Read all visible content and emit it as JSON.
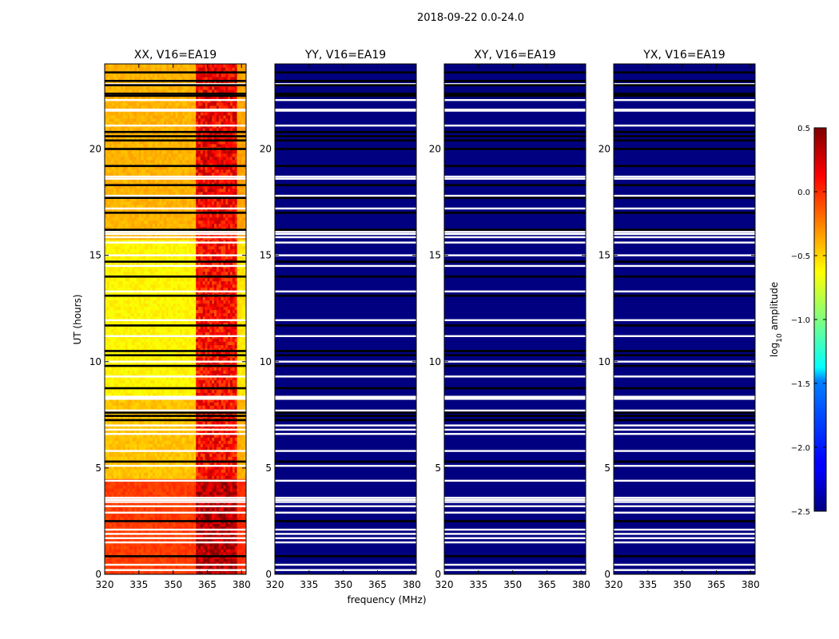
{
  "chart_data": {
    "type": "heatmap",
    "suptitle": "2018-09-22 0.0-24.0",
    "xlabel": "frequency (MHz)",
    "ylabel": "UT (hours)",
    "xlim": [
      320,
      382
    ],
    "ylim": [
      0,
      24
    ],
    "xticks": [
      320,
      335,
      350,
      365,
      380
    ],
    "yticks": [
      0,
      5,
      10,
      15,
      20
    ],
    "colorbar": {
      "label": "log10 amplitude",
      "label_base": "log",
      "label_sub": "10",
      "label_rest": " amplitude",
      "range": [
        -2.5,
        0.5
      ],
      "ticks": [
        0.5,
        0.0,
        -0.5,
        -1.0,
        -1.5,
        -2.0,
        -2.5
      ],
      "tick_labels": [
        "0.5",
        "0.0",
        "−0.5",
        "−1.0",
        "−1.5",
        "−2.0",
        "−2.5"
      ]
    },
    "panels": [
      {
        "title": "XX, V16=EA19",
        "fill_value": -0.4,
        "shape": "xx"
      },
      {
        "title": "YY, V16=EA19",
        "fill_value": -2.5,
        "shape": "uniform"
      },
      {
        "title": "XY, V16=EA19",
        "fill_value": -2.5,
        "shape": "uniform"
      },
      {
        "title": "YX, V16=EA19",
        "fill_value": -2.5,
        "shape": "uniform"
      }
    ],
    "xx_levels": [
      {
        "t_start": 0,
        "t_end": 4.5,
        "low_band": -0.05,
        "high_band": 0.25
      },
      {
        "t_start": 4.5,
        "t_end": 8.2,
        "low_band": -0.45,
        "high_band": 0.0
      },
      {
        "t_start": 8.2,
        "t_end": 15.8,
        "low_band": -0.6,
        "high_band": 0.0
      },
      {
        "t_start": 15.8,
        "t_end": 24,
        "low_band": -0.4,
        "high_band": 0.05
      }
    ],
    "flagged_black_hours": [
      0.85,
      2.5,
      5.3,
      7.25,
      7.45,
      7.6,
      8.75,
      9.8,
      10.3,
      10.5,
      11.7,
      13.1,
      14.0,
      14.7,
      16.2,
      17.0,
      17.7,
      18.3,
      19.2,
      20.0,
      20.4,
      20.6,
      20.8,
      22.5,
      22.6,
      23.0,
      23.2,
      23.6
    ],
    "flagged_white_hours": [
      0.2,
      0.45,
      1.5,
      1.7,
      1.9,
      2.1,
      2.9,
      3.2,
      3.4,
      3.5,
      3.6,
      4.4,
      5.1,
      5.8,
      6.6,
      6.8,
      7.0,
      7.7,
      8.25,
      8.3,
      8.35,
      9.3,
      10.0,
      11.2,
      11.95,
      13.3,
      14.5,
      15.0,
      15.6,
      15.85,
      16.0,
      16.1,
      17.2,
      17.7,
      17.8,
      18.6,
      18.7,
      21.1,
      21.8,
      21.85,
      22.3,
      23.05
    ]
  }
}
